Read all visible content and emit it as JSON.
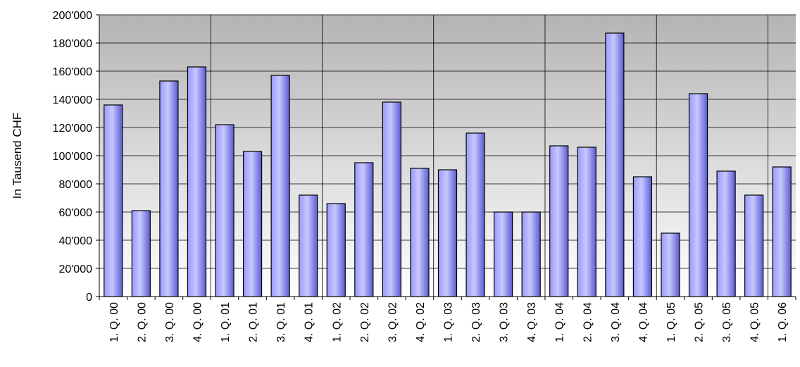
{
  "chart_data": {
    "type": "bar",
    "title": "",
    "xlabel": "",
    "ylabel": "In Tausend CHF",
    "ylim": [
      0,
      200000
    ],
    "yticks": [
      0,
      20000,
      40000,
      60000,
      80000,
      100000,
      120000,
      140000,
      160000,
      180000,
      200000
    ],
    "ytick_labels": [
      "0",
      "20'000",
      "40'000",
      "60'000",
      "80'000",
      "100'000",
      "120'000",
      "140'000",
      "160'000",
      "180'000",
      "200'000"
    ],
    "categories": [
      "1. Q. 00",
      "2. Q. 00",
      "3. Q. 00",
      "4. Q. 00",
      "1. Q. 01",
      "2. Q. 01",
      "3. Q. 01",
      "4. Q. 01",
      "1. Q. 02",
      "2. Q. 02",
      "3. Q. 02",
      "4. Q. 02",
      "1. Q. 03",
      "2. Q. 03",
      "3. Q. 03",
      "4. Q. 03",
      "1. Q. 04",
      "2. Q. 04",
      "3. Q. 04",
      "4. Q. 04",
      "1. Q. 05",
      "2. Q. 05",
      "3. Q. 05",
      "4. Q. 05",
      "1. Q. 06"
    ],
    "values": [
      136000,
      61000,
      153000,
      163000,
      122000,
      103000,
      157000,
      72000,
      66000,
      95000,
      138000,
      91000,
      90000,
      116000,
      60000,
      60000,
      107000,
      106000,
      187000,
      85000,
      45000,
      144000,
      89000,
      72000,
      92000
    ],
    "grid": true,
    "legend": "none",
    "colors": {
      "bar_top": "#c8c8ff",
      "bar_mid": "#9999ff",
      "bar_dark": "#5a5ad2",
      "bar_edge": "#000000",
      "plot_bg_top": "#b4b4b4",
      "plot_bg_bottom": "#ffffff",
      "grid": "#000000"
    }
  }
}
